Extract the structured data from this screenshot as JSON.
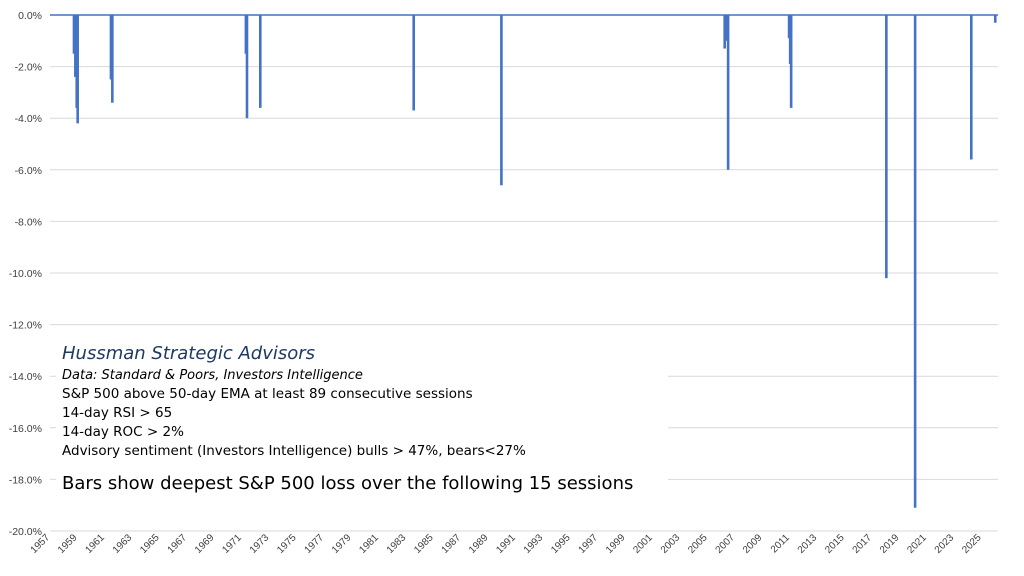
{
  "chart_data": {
    "type": "bar",
    "title": "",
    "xlabel": "",
    "ylabel": "",
    "ylim": [
      -20,
      0
    ],
    "xlim": [
      1957,
      2026.2
    ],
    "yticks": [
      0,
      -2,
      -4,
      -6,
      -8,
      -10,
      -12,
      -14,
      -16,
      -18,
      -20
    ],
    "ytick_labels": [
      "0.0%",
      "-2.0%",
      "-4.0%",
      "-6.0%",
      "-8.0%",
      "-10.0%",
      "-12.0%",
      "-14.0%",
      "-16.0%",
      "-18.0%",
      "-20.0%"
    ],
    "xticks": [
      "1957",
      "1959",
      "1961",
      "1963",
      "1965",
      "1967",
      "1969",
      "1971",
      "1973",
      "1975",
      "1977",
      "1979",
      "1981",
      "1983",
      "1985",
      "1987",
      "1989",
      "1991",
      "1993",
      "1995",
      "1997",
      "1999",
      "2001",
      "2003",
      "2005",
      "2007",
      "2009",
      "2011",
      "2013",
      "2015",
      "2017",
      "2019",
      "2021",
      "2023",
      "2025"
    ],
    "grid": true,
    "bar_color": "#4472C4",
    "bars": [
      {
        "x": 1958.75,
        "y": -1.5
      },
      {
        "x": 1958.85,
        "y": -2.4
      },
      {
        "x": 1958.95,
        "y": -3.6
      },
      {
        "x": 1959.02,
        "y": -4.2
      },
      {
        "x": 1961.45,
        "y": -2.5
      },
      {
        "x": 1961.55,
        "y": -3.4
      },
      {
        "x": 1971.3,
        "y": -1.5
      },
      {
        "x": 1971.38,
        "y": -4.0
      },
      {
        "x": 1972.35,
        "y": -3.6
      },
      {
        "x": 1983.55,
        "y": -3.7
      },
      {
        "x": 1989.95,
        "y": -6.6
      },
      {
        "x": 2006.25,
        "y": -1.3
      },
      {
        "x": 2006.35,
        "y": -1.0
      },
      {
        "x": 2006.5,
        "y": -6.0
      },
      {
        "x": 2010.95,
        "y": -0.9
      },
      {
        "x": 2011.03,
        "y": -1.9
      },
      {
        "x": 2011.1,
        "y": -3.6
      },
      {
        "x": 2018.05,
        "y": -10.2
      },
      {
        "x": 2020.15,
        "y": -19.1
      },
      {
        "x": 2024.25,
        "y": -5.6
      },
      {
        "x": 2026.0,
        "y": -0.3
      }
    ]
  },
  "annotation": {
    "brand": "Hussman Strategic Advisors",
    "source": "Data: Standard & Poors, Investors Intelligence",
    "conditions": [
      "S&P 500 above 50-day EMA at least 89 consecutive sessions",
      "14-day RSI > 65",
      "14-day ROC > 2%",
      "Advisory sentiment (Investors Intelligence) bulls > 47%,  bears<27%"
    ],
    "caption": "Bars show deepest S&P 500 loss over the following 15 sessions"
  }
}
